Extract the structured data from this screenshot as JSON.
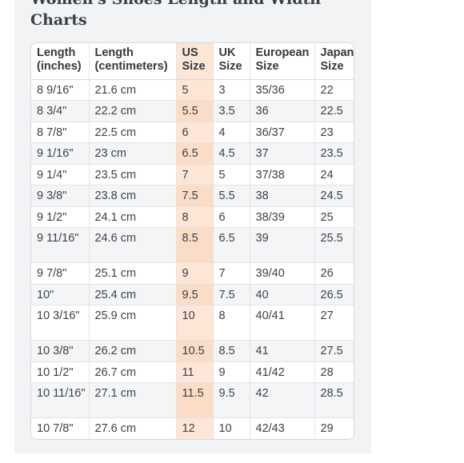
{
  "title": "Women's Shoes Length and Width Charts",
  "table": {
    "headers": [
      [
        "Length",
        "(inches)"
      ],
      [
        "Length",
        "(centimeters)"
      ],
      [
        "US",
        "Size"
      ],
      [
        "UK",
        "Size"
      ],
      [
        "European",
        "Size"
      ],
      [
        "Japan",
        "Size"
      ]
    ],
    "rows": [
      [
        "8 9/16\"",
        "21.6 cm",
        "5",
        "3",
        "35/36",
        "22"
      ],
      [
        "8 3/4\"",
        "22.2 cm",
        "5.5",
        "3.5",
        "36",
        "22.5"
      ],
      [
        "8 7/8\"",
        "22.5 cm",
        "6",
        "4",
        "36/37",
        "23"
      ],
      [
        "9 1/16\"",
        "23 cm",
        "6.5",
        "4.5",
        "37",
        "23.5"
      ],
      [
        "9 1/4\"",
        "23.5 cm",
        "7",
        "5",
        "37/38",
        "24"
      ],
      [
        "9 3/8\"",
        "23.8 cm",
        "7.5",
        "5.5",
        "38",
        "24.5"
      ],
      [
        "9 1/2\"",
        "24.1 cm",
        "8",
        "6",
        "38/39",
        "25"
      ],
      [
        "9 11/16\"",
        "24.6 cm",
        "8.5",
        "6.5",
        "39",
        "25.5"
      ],
      [
        "9 7/8\"",
        "25.1 cm",
        "9",
        "7",
        "39/40",
        "26"
      ],
      [
        "10\"",
        "25.4 cm",
        "9.5",
        "7.5",
        "40",
        "26.5"
      ],
      [
        "10 3/16\"",
        "25.9 cm",
        "10",
        "8",
        "40/41",
        "27"
      ],
      [
        "10 3/8\"",
        "26.2 cm",
        "10.5",
        "8.5",
        "41",
        "27.5"
      ],
      [
        "10 1/2\"",
        "26.7 cm",
        "11",
        "9",
        "41/42",
        "28"
      ],
      [
        "10 11/16\"",
        "27.1 cm",
        "11.5",
        "9.5",
        "42",
        "28.5"
      ],
      [
        "10 7/8\"",
        "27.6 cm",
        "12",
        "10",
        "42/43",
        "29"
      ]
    ],
    "highlight_color": "#fde6d6"
  }
}
